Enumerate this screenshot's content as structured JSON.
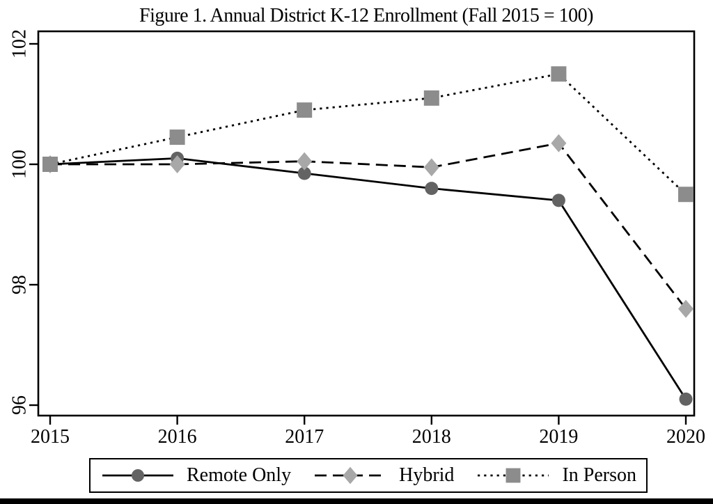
{
  "title": "Figure 1. Annual District K-12 Enrollment (Fall 2015 = 100)",
  "chart_data": {
    "type": "line",
    "title": "Figure 1. Annual District K-12 Enrollment (Fall 2015 = 100)",
    "x": [
      2015,
      2016,
      2017,
      2018,
      2019,
      2020
    ],
    "xticks": [
      "2015",
      "2016",
      "2017",
      "2018",
      "2019",
      "2020"
    ],
    "yticks": [
      "96",
      "98",
      "100",
      "102"
    ],
    "ylim": [
      95.8,
      102.2
    ],
    "xlabel": "",
    "ylabel": "",
    "grid": false,
    "legend_position": "bottom",
    "line_color": "#000000",
    "series": [
      {
        "name": "Remote Only",
        "values": [
          100,
          100.1,
          99.85,
          99.6,
          99.4,
          96.1
        ],
        "marker": "circle",
        "marker_color": "#636363",
        "line_style": "solid"
      },
      {
        "name": "Hybrid",
        "values": [
          100,
          100,
          100.05,
          99.95,
          100.35,
          97.6
        ],
        "marker": "diamond",
        "marker_color": "#a8a8a8",
        "line_style": "dashed"
      },
      {
        "name": "In Person",
        "values": [
          100,
          100.45,
          100.9,
          101.1,
          101.5,
          99.5
        ],
        "marker": "square",
        "marker_color": "#8c8c8c",
        "line_style": "dotted"
      }
    ]
  }
}
